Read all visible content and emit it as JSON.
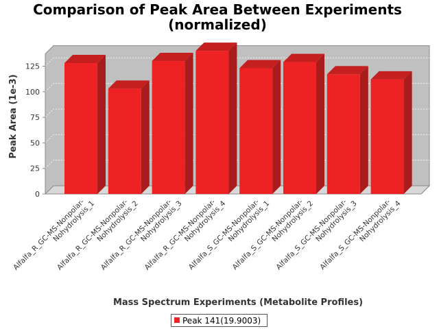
{
  "chart_data": {
    "type": "bar",
    "title": [
      "Comparison of Peak Area Between Experiments",
      "(normalized)"
    ],
    "xlabel": "Mass Spectrum Experiments (Metabolite Profiles)",
    "ylabel": "Peak Area (1e-3)",
    "ylim": [
      0,
      145
    ],
    "yticks": [
      0,
      25,
      50,
      75,
      100,
      125
    ],
    "categories": [
      [
        "Alfalfa_R_GC-MS-Nonpolar-",
        "Nohydrolysis_1"
      ],
      [
        "Alfalfa_R_GC-MS-Nonpolar-",
        "Nohydrolysis_2"
      ],
      [
        "Alfalfa_R_GC-MS-Nonpolar-",
        "Nohydrolysis_3"
      ],
      [
        "Alfalfa_R_GC-MS-Nonpolar-",
        "Nohydrolysis_4"
      ],
      [
        "Alfalfa_S_GC-MS-Nonpolar-",
        "Nohydrolysis_1"
      ],
      [
        "Alfalfa_S_GC-MS-Nonpolar-",
        "Nohydrolysis_2"
      ],
      [
        "Alfalfa_S_GC-MS-Nonpolar-",
        "Nohydrolysis_3"
      ],
      [
        "Alfalfa_S_GC-MS-Nonpolar-",
        "Nohydrolysis_4"
      ]
    ],
    "series": [
      {
        "name": "Peak 141(19.9003)",
        "color": "#ee2222",
        "values": [
          128,
          103,
          130,
          140,
          123,
          129,
          117,
          112
        ]
      }
    ],
    "grid": true,
    "legend_position": "bottom",
    "plot_background": "#c0c0c0",
    "style": "3d-bar"
  }
}
